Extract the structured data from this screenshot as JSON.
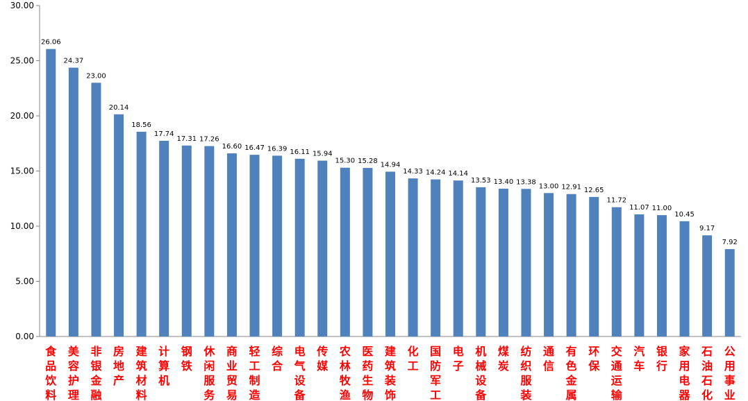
{
  "chart_data": {
    "type": "bar",
    "categories": [
      "食品饮料",
      "美容护理",
      "非银金融",
      "房地产",
      "建筑材料",
      "计算机",
      "钢铁",
      "休闲服务",
      "商业贸易",
      "轻工制造",
      "综合",
      "电气设备",
      "传媒",
      "农林牧渔",
      "医药生物",
      "建筑装饰",
      "化工",
      "国防军工",
      "电子",
      "机械设备",
      "煤炭",
      "纺织服装",
      "通信",
      "有色金属",
      "环保",
      "交通运输",
      "汽车",
      "银行",
      "家用电器",
      "石油石化",
      "公用事业"
    ],
    "values": [
      26.06,
      24.37,
      23.0,
      20.14,
      18.56,
      17.74,
      17.31,
      17.26,
      16.6,
      16.47,
      16.39,
      16.11,
      15.94,
      15.3,
      15.28,
      14.94,
      14.33,
      14.24,
      14.14,
      13.53,
      13.4,
      13.38,
      13.0,
      12.91,
      12.65,
      11.72,
      11.07,
      11.0,
      10.45,
      9.17,
      7.92
    ],
    "value_labels": [
      "26.06",
      "24.37",
      "23.00",
      "20.14",
      "18.56",
      "17.74",
      "17.31",
      "17.26",
      "16.60",
      "16.47",
      "16.39",
      "16.11",
      "15.94",
      "15.30",
      "15.28",
      "14.94",
      "14.33",
      "14.24",
      "14.14",
      "13.53",
      "13.40",
      "13.38",
      "13.00",
      "12.91",
      "12.65",
      "11.72",
      "11.07",
      "11.00",
      "10.45",
      "9.17",
      "7.92"
    ],
    "ylim": [
      0,
      30
    ],
    "yticks": [
      "0.00",
      "5.00",
      "10.00",
      "15.00",
      "20.00",
      "25.00",
      "30.00"
    ],
    "title": "",
    "xlabel": "",
    "ylabel": "",
    "grid": false,
    "legend": "none",
    "bar_color": "#4F81BD",
    "xlabel_color": "#FF0000"
  }
}
